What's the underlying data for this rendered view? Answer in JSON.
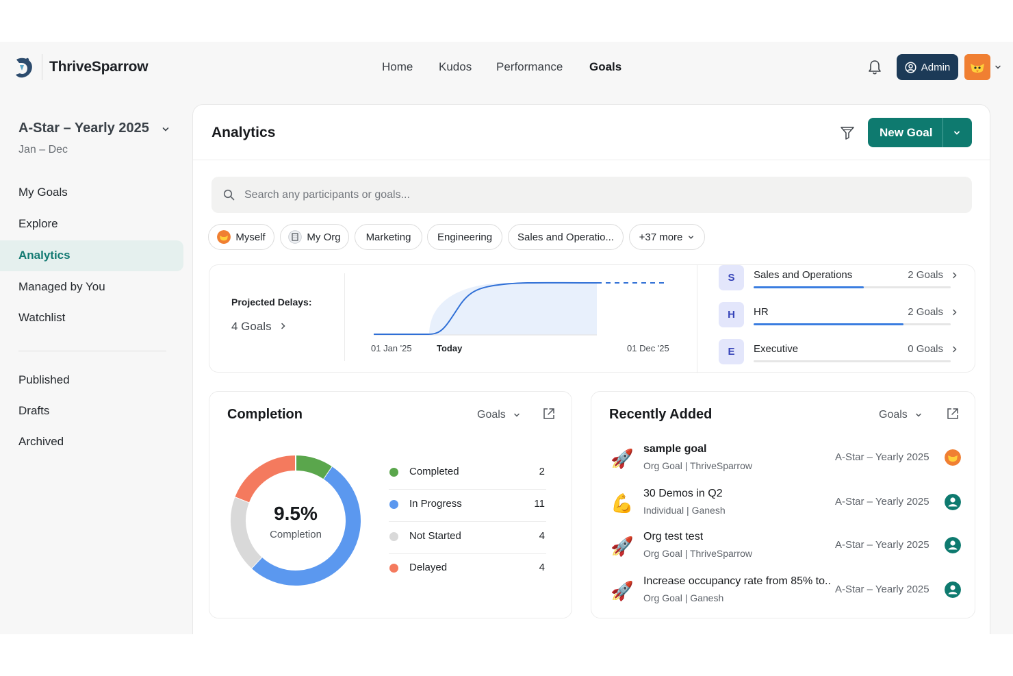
{
  "app": {
    "name": "ThriveSparrow"
  },
  "nav": {
    "home": "Home",
    "kudos": "Kudos",
    "performance": "Performance",
    "goals": "Goals"
  },
  "header": {
    "admin_label": "Admin"
  },
  "sidebar": {
    "cycle_title": "A-Star – Yearly 2025",
    "cycle_range": "Jan – Dec",
    "items": [
      "My Goals",
      "Explore",
      "Analytics",
      "Managed by You",
      "Watchlist"
    ],
    "status_items": [
      "Published",
      "Drafts",
      "Archived"
    ]
  },
  "page": {
    "title": "Analytics",
    "new_goal_label": "New Goal"
  },
  "search": {
    "placeholder": "Search any participants or goals..."
  },
  "chips": [
    "Myself",
    "My Org",
    "Marketing",
    "Engineering",
    "Sales and Operatio...",
    "+37 more"
  ],
  "delays": {
    "label": "Projected Delays:",
    "count": "4 Goals",
    "timeline": {
      "start": "01 Jan '25",
      "today": "Today",
      "end": "01 Dec '25"
    }
  },
  "departments": [
    {
      "badge": "S",
      "name": "Sales and Operations",
      "goals": "2 Goals",
      "progress": 0.56
    },
    {
      "badge": "H",
      "name": "HR",
      "goals": "2 Goals",
      "progress": 0.76
    },
    {
      "badge": "E",
      "name": "Executive",
      "goals": "0 Goals",
      "progress": 0.0
    }
  ],
  "completion": {
    "title": "Completion",
    "select": "Goals",
    "percent": "9.5%",
    "percent_label": "Completion",
    "legend": [
      {
        "label": "Completed",
        "value": "2",
        "color": "#5aa64c"
      },
      {
        "label": "In Progress",
        "value": "11",
        "color": "#5b98ef"
      },
      {
        "label": "Not Started",
        "value": "4",
        "color": "#d9d9d9"
      },
      {
        "label": "Delayed",
        "value": "4",
        "color": "#f47a5e"
      }
    ]
  },
  "recent": {
    "title": "Recently Added",
    "select": "Goals",
    "items": [
      {
        "icon": "rocket-icon",
        "glyph": "🚀",
        "title": "sample goal",
        "sub": "Org Goal | ThriveSparrow",
        "cycle": "A-Star – Yearly 2025",
        "avatar_color": "#f07f32"
      },
      {
        "icon": "flexed-biceps-icon",
        "glyph": "💪",
        "title": "30 Demos in Q2",
        "sub": "Individual | Ganesh",
        "cycle": "A-Star – Yearly 2025",
        "avatar_color": "#0e7a6f"
      },
      {
        "icon": "rocket-icon",
        "glyph": "🚀",
        "title": "Org test test",
        "sub": "Org Goal | ThriveSparrow",
        "cycle": "A-Star – Yearly 2025",
        "avatar_color": "#0e7a6f"
      },
      {
        "icon": "rocket-icon",
        "glyph": "🚀",
        "title": "Increase occupancy rate from 85% to...",
        "sub": "Org Goal | Ganesh",
        "cycle": "A-Star – Yearly 2025",
        "avatar_color": "#0e7a6f"
      }
    ]
  },
  "colors": {
    "accent": "#0e7a6f",
    "admin_bg": "#1c3a57",
    "progress": "#3a7de0"
  }
}
